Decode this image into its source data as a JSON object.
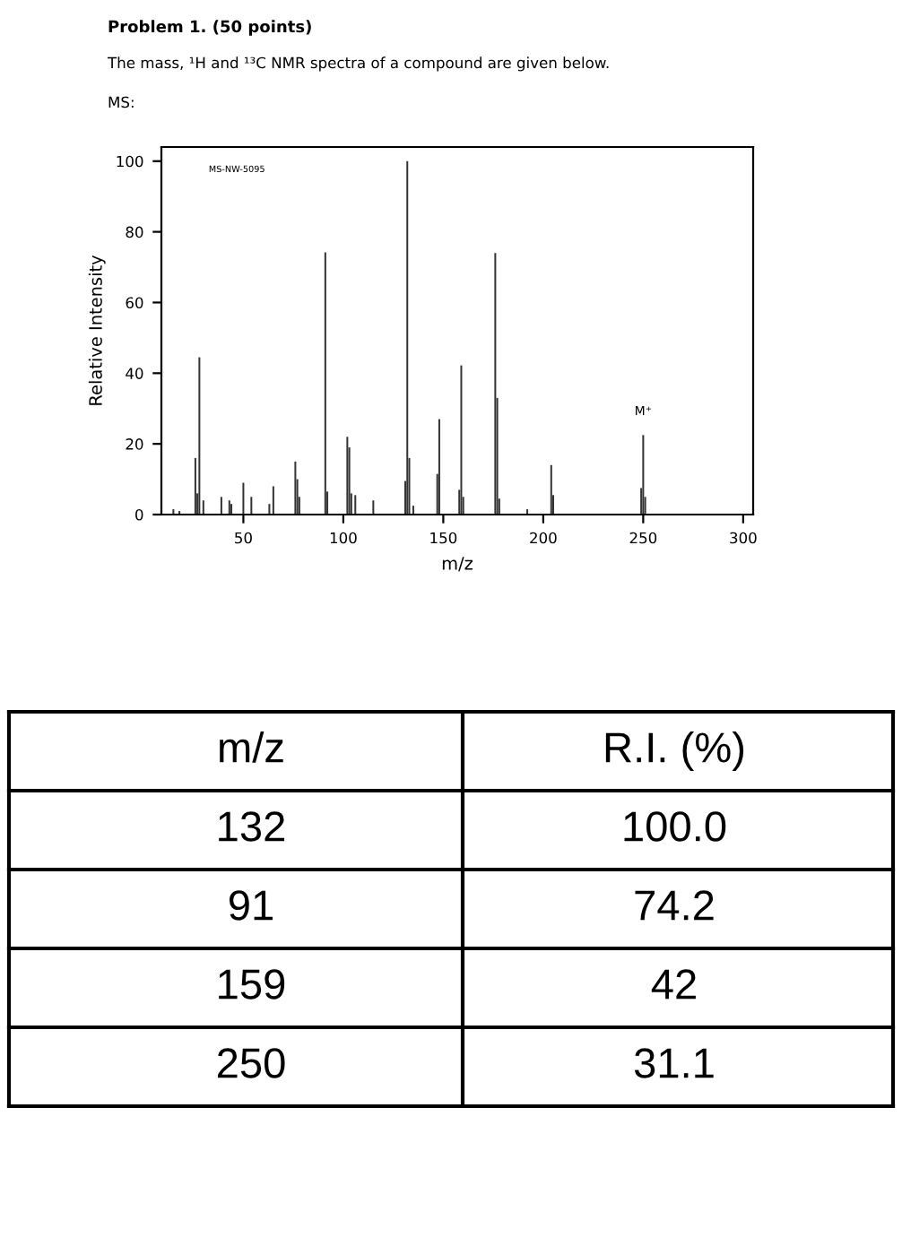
{
  "chart_data": {
    "type": "bar",
    "title": "Problem 1. (50 points)",
    "subtitle": "The mass, ¹H and ¹³C NMR spectra of a compound are given below.",
    "xlabel": "m/z",
    "ylabel": "Relative Intensity",
    "x": [
      15,
      18,
      26,
      27,
      28,
      30,
      39,
      43,
      44,
      50,
      54,
      63,
      65,
      76,
      77,
      78,
      91,
      92,
      102,
      103,
      104,
      106,
      115,
      131,
      132,
      133,
      135,
      147,
      148,
      158,
      159,
      160,
      176,
      177,
      178,
      192,
      204,
      205,
      249,
      250,
      251
    ],
    "series": [
      {
        "color": "#333333",
        "values": [
          1.5,
          1,
          16,
          6,
          44.5,
          4,
          5,
          4,
          3,
          9,
          5,
          3,
          8,
          15,
          10,
          5,
          74.2,
          6.5,
          22,
          19,
          6,
          5.5,
          4,
          9.5,
          100,
          16,
          2.5,
          11.5,
          27,
          7,
          42.2,
          5,
          74,
          33,
          4.5,
          1.5,
          14,
          5.5,
          7.5,
          22.5,
          5
        ]
      }
    ],
    "xlim": [
      9,
      305
    ],
    "xticks": [
      50,
      100,
      150,
      200,
      250,
      300
    ],
    "ylim": [
      0,
      104
    ],
    "yticks": [
      0,
      20,
      40,
      60,
      80,
      100
    ],
    "grid": false,
    "annotations": [
      "MS:",
      "MS-NW-5095",
      {
        "text": "M⁺",
        "x": 250,
        "y": 22.5
      },
      "m/z",
      "R.I. (%)",
      "132",
      "100.0",
      "91",
      "74.2",
      "159",
      "42",
      "250",
      "31.1"
    ]
  }
}
